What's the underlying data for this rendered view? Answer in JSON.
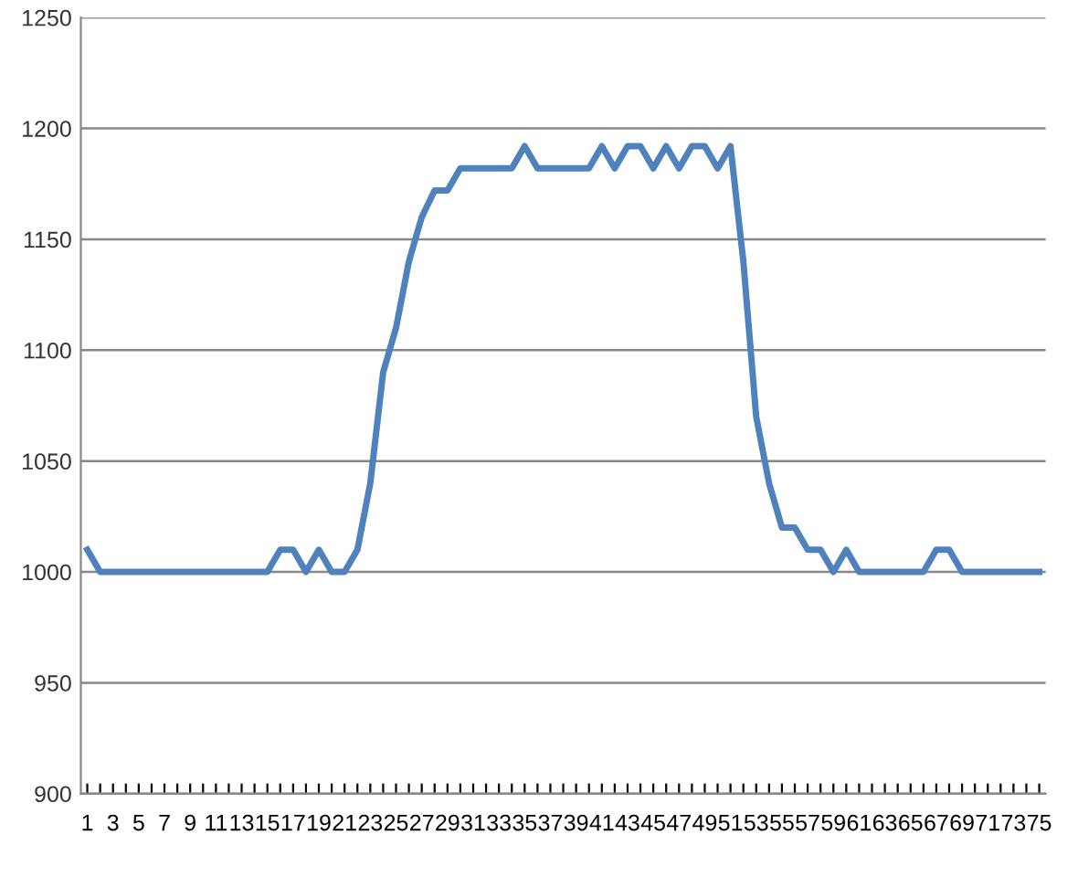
{
  "chart_data": {
    "type": "line",
    "categories": [
      "1",
      null,
      "3",
      null,
      "5",
      null,
      "7",
      null,
      "9",
      null,
      "11",
      null,
      "13",
      null,
      "15",
      null,
      "17",
      null,
      "19",
      null,
      "21",
      null,
      "23",
      null,
      "25",
      null,
      "27",
      null,
      "29",
      null,
      "31",
      null,
      "33",
      null,
      "35",
      null,
      "37",
      null,
      "39",
      null,
      "41",
      null,
      "43",
      null,
      "45",
      null,
      "47",
      null,
      "49",
      null,
      "51",
      null,
      "53",
      null,
      "55",
      null,
      "57",
      null,
      "59",
      null,
      "61",
      null,
      "63",
      null,
      "65",
      null,
      "67",
      null,
      "69",
      null,
      "71",
      null,
      "73",
      null,
      "75"
    ],
    "series": [
      {
        "color": "#4f81bd",
        "values": [
          1010,
          1000,
          1000,
          1000,
          1000,
          1000,
          1000,
          1000,
          1000,
          1000,
          1000,
          1000,
          1000,
          1000,
          1000,
          1010,
          1010,
          1000,
          1010,
          1000,
          1000,
          1010,
          1040,
          1090,
          1110,
          1140,
          1160,
          1172,
          1172,
          1182,
          1182,
          1182,
          1182,
          1182,
          1192,
          1182,
          1182,
          1182,
          1182,
          1182,
          1192,
          1182,
          1192,
          1192,
          1182,
          1192,
          1182,
          1192,
          1192,
          1182,
          1192,
          1140,
          1070,
          1040,
          1020,
          1020,
          1010,
          1010,
          1000,
          1010,
          1000,
          1000,
          1000,
          1000,
          1000,
          1000,
          1010,
          1010,
          1000,
          1000,
          1000,
          1000,
          1000,
          1000,
          1000
        ]
      }
    ],
    "ylim": [
      900,
      1250
    ],
    "yticks": [
      900,
      950,
      1000,
      1050,
      1100,
      1150,
      1200,
      1250
    ],
    "grid": "y",
    "marker": "none",
    "line_style": "solid"
  }
}
